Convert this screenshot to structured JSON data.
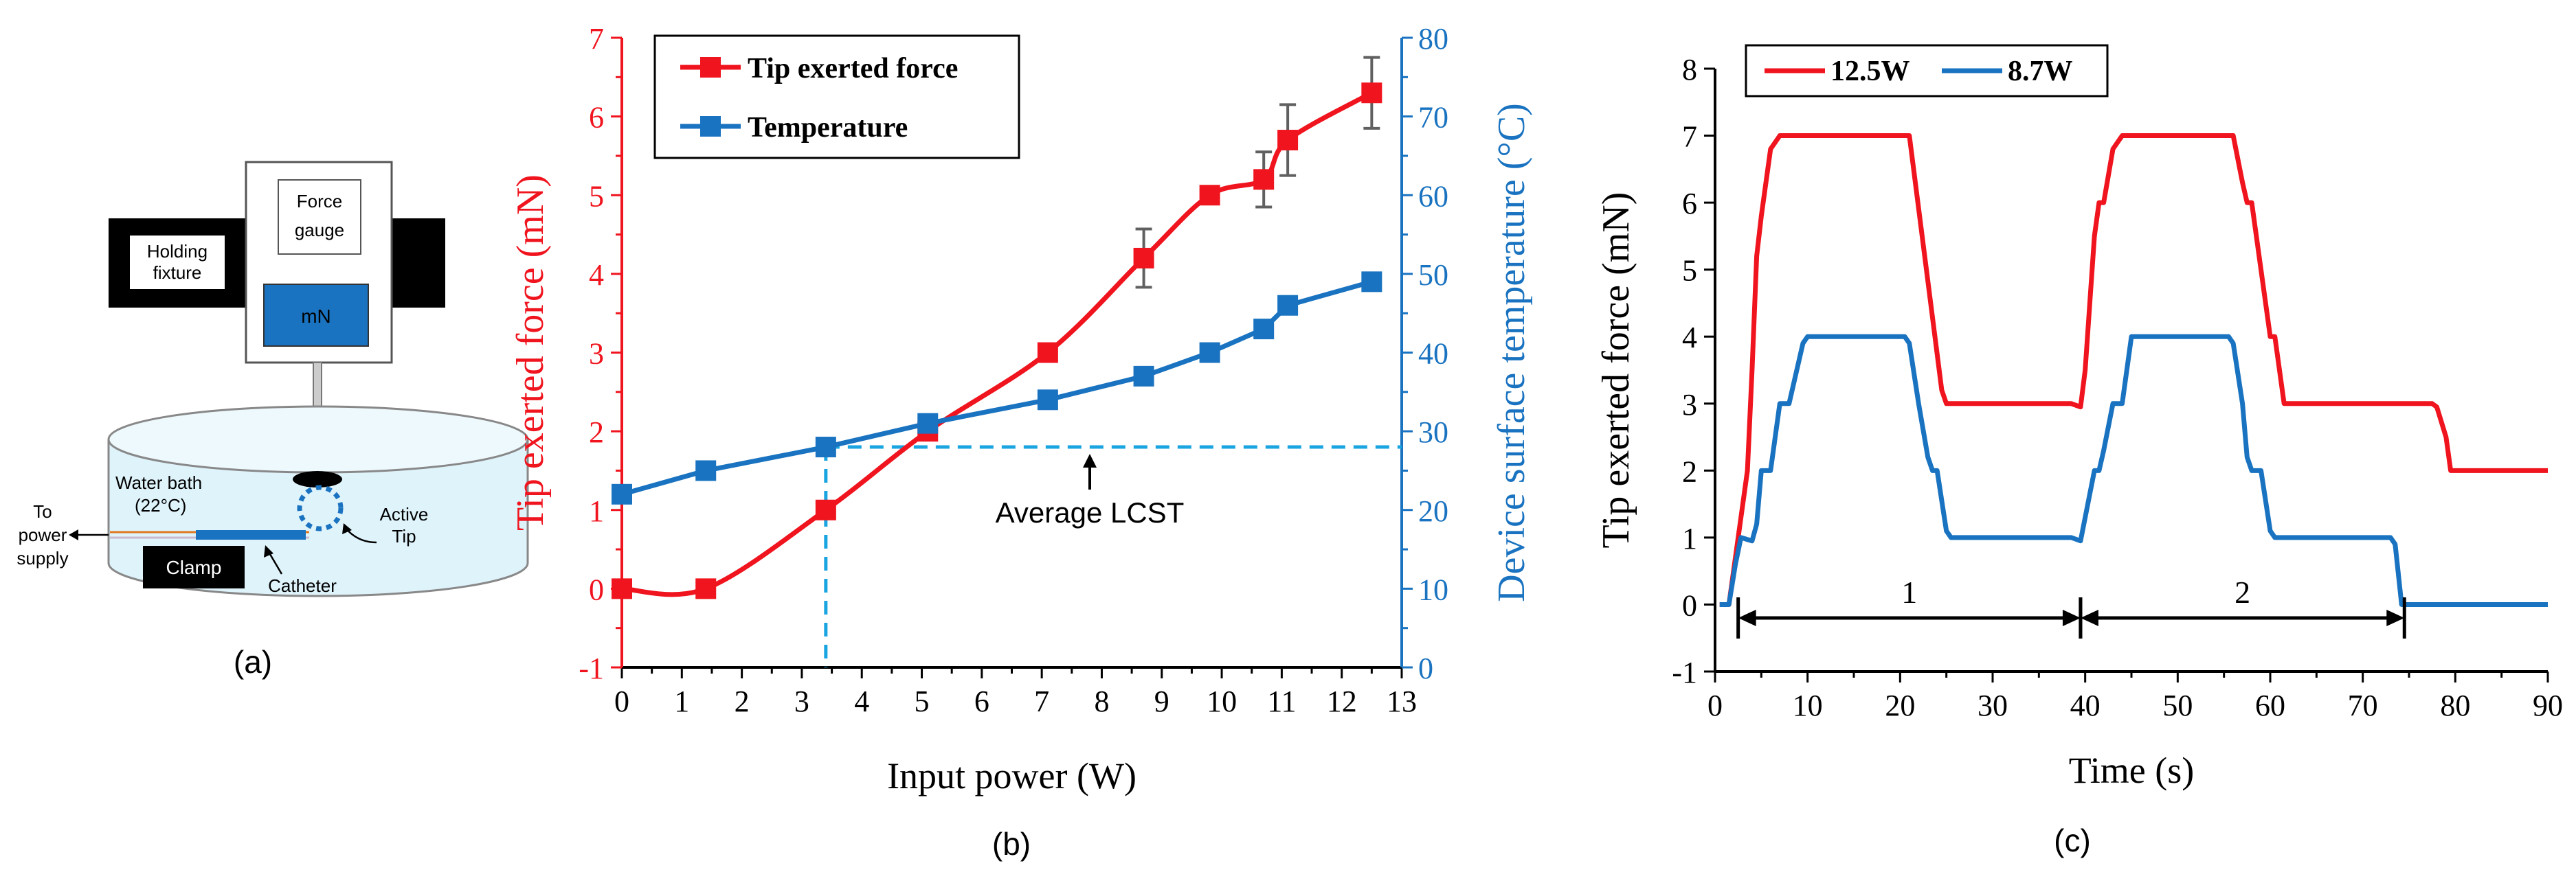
{
  "colors": {
    "red": "#f0141e",
    "blue": "#1a73c0",
    "cyan": "#1aa5e0",
    "black": "#000000",
    "gray": "#606060",
    "water": "#dff3fb",
    "gauge_blue": "#1a73c0"
  },
  "panel_a": {
    "caption": "(a)",
    "holding_fixture": [
      "Holding",
      "fixture"
    ],
    "force_gauge": [
      "Force",
      "gauge"
    ],
    "gauge_unit": "mN",
    "water_bath": [
      "Water bath",
      "(22°C)"
    ],
    "to_power": [
      "To",
      "power",
      "supply"
    ],
    "active_tip": [
      "Active",
      "Tip"
    ],
    "clamp": "Clamp",
    "catheter": "Catheter"
  },
  "panel_b": {
    "caption": "(b)",
    "annotation": "Average LCST"
  },
  "panel_c": {
    "caption": "(c)",
    "segment_labels": [
      "1",
      "2"
    ]
  },
  "chart_data": [
    {
      "id": "b",
      "type": "line",
      "title": "",
      "xlabel": "Input power (W)",
      "ylabel": "Tip exerted force (mN)",
      "y2label": "Device surface temperature (°C)",
      "xlim": [
        0,
        13
      ],
      "ylim": [
        -1,
        7
      ],
      "y2lim": [
        0,
        80
      ],
      "xticks": [
        0,
        1,
        2,
        3,
        4,
        5,
        6,
        7,
        8,
        9,
        10,
        11,
        12,
        13
      ],
      "yticks": [
        -1,
        0,
        1,
        2,
        3,
        4,
        5,
        6,
        7
      ],
      "y2ticks": [
        0,
        10,
        20,
        30,
        40,
        50,
        60,
        70,
        80
      ],
      "grid": false,
      "legend_position": "top-left",
      "series": [
        {
          "name": "Tip exerted force",
          "axis": "left",
          "x": [
            0,
            1.4,
            3.4,
            5.1,
            7.1,
            8.7,
            9.8,
            10.7,
            11.1,
            12.5
          ],
          "y": [
            0,
            0,
            1.0,
            2.0,
            3.0,
            4.2,
            5.0,
            5.2,
            5.7,
            6.3
          ],
          "error": [
            0,
            0,
            0,
            0,
            0,
            0.37,
            0,
            0.35,
            0.45,
            0.45
          ]
        },
        {
          "name": "Temperature",
          "axis": "right",
          "x": [
            0,
            1.4,
            3.4,
            5.1,
            7.1,
            8.7,
            9.8,
            10.7,
            11.1,
            12.5
          ],
          "y": [
            22,
            25,
            28,
            31,
            34,
            37,
            40,
            43,
            46,
            49
          ]
        }
      ],
      "reference_lines": {
        "lcst_temperature": 28,
        "lcst_power": 3.4
      }
    },
    {
      "id": "c",
      "type": "line",
      "title": "",
      "xlabel": "Time (s)",
      "ylabel": "Tip exerted force (mN)",
      "xlim": [
        0,
        90
      ],
      "ylim": [
        -1,
        8
      ],
      "xticks": [
        0,
        10,
        20,
        30,
        40,
        50,
        60,
        70,
        80,
        90
      ],
      "yticks": [
        -1,
        0,
        1,
        2,
        3,
        4,
        5,
        6,
        7,
        8
      ],
      "grid": false,
      "legend_position": "top-left",
      "series": [
        {
          "name": "12.5W",
          "x": [
            0.5,
            1.5,
            2,
            2.5,
            3,
            3.5,
            4,
            4.5,
            5,
            6,
            7,
            20.5,
            21,
            24.5,
            25,
            38.5,
            39.5,
            40,
            41,
            41.5,
            42,
            43,
            44,
            45,
            55.5,
            56,
            57,
            57.5,
            58,
            59,
            60,
            60.5,
            61,
            61.5,
            62,
            77.5,
            78,
            79,
            79.5,
            90
          ],
          "y": [
            0,
            0,
            0.5,
            1,
            1.5,
            2,
            3.5,
            5.2,
            5.8,
            6.8,
            7,
            7,
            7,
            3.2,
            3,
            3,
            2.95,
            3.5,
            5.5,
            6,
            6,
            6.8,
            7,
            7,
            7,
            7,
            6.3,
            6,
            6,
            5,
            4,
            4,
            3.5,
            3,
            3,
            3,
            2.95,
            2.5,
            2,
            2
          ]
        },
        {
          "name": "8.7W",
          "x": [
            0.5,
            1.5,
            2.2,
            2.8,
            4,
            4.5,
            5,
            6,
            6.5,
            7,
            8,
            9.5,
            10,
            20.5,
            21,
            22,
            23,
            23.5,
            24,
            25,
            25.5,
            38.5,
            39.5,
            40,
            41,
            41.5,
            42,
            43,
            44,
            45,
            55.5,
            56,
            57,
            57.5,
            58,
            59,
            60,
            60.5,
            73,
            73.5,
            74.2,
            90
          ],
          "y": [
            0,
            0,
            0.6,
            1,
            0.95,
            1.2,
            2,
            2,
            2.5,
            3,
            3,
            3.9,
            4,
            4,
            3.9,
            3,
            2.2,
            2,
            2,
            1.1,
            1,
            1,
            0.95,
            1.3,
            2,
            2,
            2.3,
            3,
            3,
            4,
            4,
            3.9,
            3,
            2.2,
            2,
            2,
            1.1,
            1,
            1,
            0.9,
            0,
            0
          ]
        }
      ],
      "intervals": [
        {
          "label": "1",
          "start": 2.5,
          "end": 39.5
        },
        {
          "label": "2",
          "start": 39.5,
          "end": 74.5
        }
      ]
    }
  ]
}
